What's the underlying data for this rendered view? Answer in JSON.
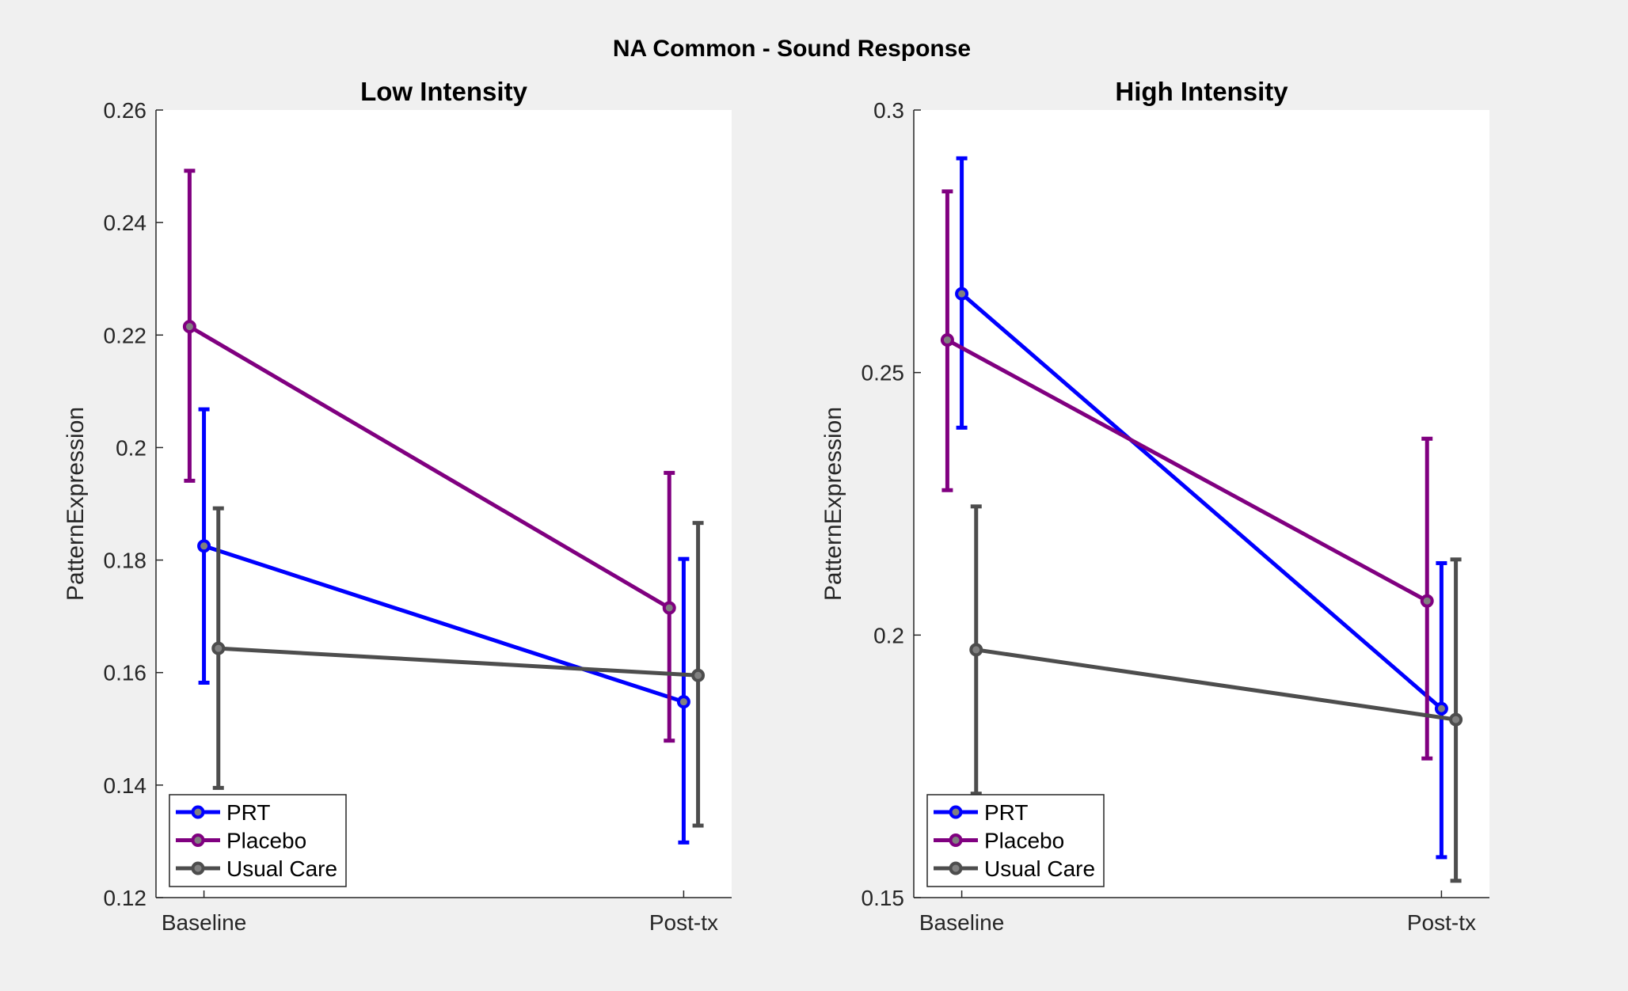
{
  "figure_title": "NA Common - Sound Response",
  "chart_data": [
    {
      "type": "line",
      "title": "Low Intensity",
      "xlabel": "",
      "ylabel": "PatternExpression",
      "categories": [
        "Baseline",
        "Post-tx"
      ],
      "ylim": [
        0.12,
        0.26
      ],
      "yticks": [
        "0.12",
        "0.14",
        "0.16",
        "0.18",
        "0.2",
        "0.22",
        "0.24",
        "0.26"
      ],
      "grid": false,
      "legend_position": "bottom-left",
      "series": [
        {
          "name": "PRT",
          "color": "#0000ff",
          "offset": 0.0,
          "values": [
            0.1825,
            0.1548
          ],
          "error_low": [
            0.1582,
            0.1298
          ],
          "error_high": [
            0.2068,
            0.1802
          ]
        },
        {
          "name": "Placebo",
          "color": "#800080",
          "offset": -0.03,
          "values": [
            0.2215,
            0.1715
          ],
          "error_low": [
            0.1941,
            0.1479
          ],
          "error_high": [
            0.2492,
            0.1955
          ]
        },
        {
          "name": "Usual Care",
          "color": "#4d4d4d",
          "offset": 0.03,
          "values": [
            0.1643,
            0.1595
          ],
          "error_low": [
            0.1395,
            0.1328
          ],
          "error_high": [
            0.1892,
            0.1866
          ]
        }
      ]
    },
    {
      "type": "line",
      "title": "High Intensity",
      "xlabel": "",
      "ylabel": "PatternExpression",
      "categories": [
        "Baseline",
        "Post-tx"
      ],
      "ylim": [
        0.15,
        0.3
      ],
      "yticks": [
        "0.15",
        "0.2",
        "0.25",
        "0.3"
      ],
      "grid": false,
      "legend_position": "bottom-left",
      "series": [
        {
          "name": "PRT",
          "color": "#0000ff",
          "offset": 0.0,
          "values": [
            0.265,
            0.186
          ],
          "error_low": [
            0.2395,
            0.1577
          ],
          "error_high": [
            0.2908,
            0.2137
          ]
        },
        {
          "name": "Placebo",
          "color": "#800080",
          "offset": -0.03,
          "values": [
            0.2562,
            0.2065
          ],
          "error_low": [
            0.2276,
            0.1765
          ],
          "error_high": [
            0.2845,
            0.2374
          ]
        },
        {
          "name": "Usual Care",
          "color": "#4d4d4d",
          "offset": 0.03,
          "values": [
            0.1972,
            0.1839
          ],
          "error_low": [
            0.1698,
            0.1532
          ],
          "error_high": [
            0.2245,
            0.2144
          ]
        }
      ]
    }
  ]
}
